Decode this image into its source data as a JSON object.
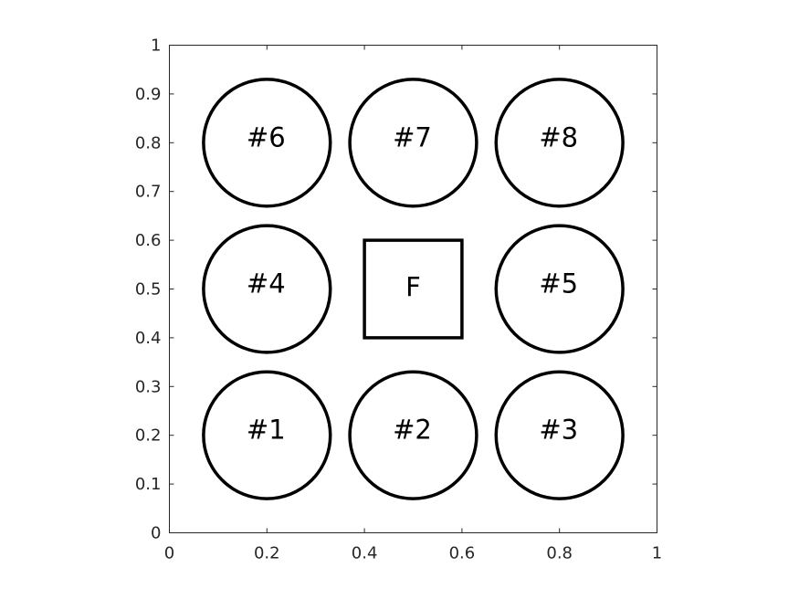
{
  "chart_data": {
    "type": "diagram",
    "xlim": [
      0,
      1
    ],
    "ylim": [
      0,
      1
    ],
    "x_ticks": [
      "0",
      "0.2",
      "0.4",
      "0.6",
      "0.8",
      "1"
    ],
    "y_ticks": [
      "0",
      "0.1",
      "0.2",
      "0.3",
      "0.4",
      "0.5",
      "0.6",
      "0.7",
      "0.8",
      "0.9",
      "1"
    ],
    "circle_radius": 0.13,
    "circles": [
      {
        "label": "#1",
        "cx": 0.2,
        "cy": 0.2
      },
      {
        "label": "#2",
        "cx": 0.5,
        "cy": 0.2
      },
      {
        "label": "#3",
        "cx": 0.8,
        "cy": 0.2
      },
      {
        "label": "#4",
        "cx": 0.2,
        "cy": 0.5
      },
      {
        "label": "#5",
        "cx": 0.8,
        "cy": 0.5
      },
      {
        "label": "#6",
        "cx": 0.2,
        "cy": 0.8
      },
      {
        "label": "#7",
        "cx": 0.5,
        "cy": 0.8
      },
      {
        "label": "#8",
        "cx": 0.8,
        "cy": 0.8
      }
    ],
    "square": {
      "label": "F",
      "x0": 0.4,
      "y0": 0.4,
      "x1": 0.6,
      "y1": 0.6
    },
    "stroke_color": "#000000",
    "axis_color": "#262626"
  }
}
